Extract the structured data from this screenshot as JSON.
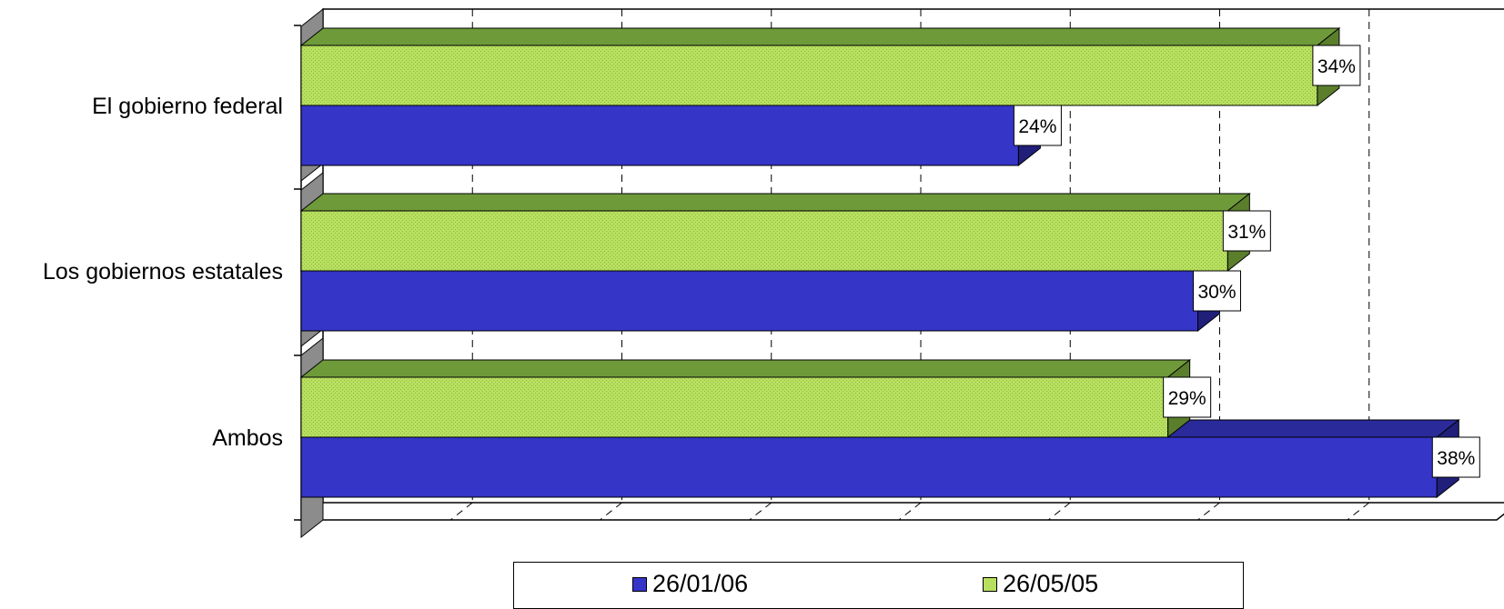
{
  "chart_data": {
    "type": "bar",
    "orientation": "horizontal",
    "three_d": true,
    "categories": [
      "El gobierno federal",
      "Los gobiernos estatales",
      "Ambos"
    ],
    "series": [
      {
        "name": "26/05/05",
        "values": [
          34,
          31,
          29
        ],
        "labels": [
          "34%",
          "31%",
          "29%"
        ],
        "color": "#b8e060"
      },
      {
        "name": "26/01/06",
        "values": [
          24,
          30,
          38
        ],
        "labels": [
          "24%",
          "30%",
          "38%"
        ],
        "color": "#3535c8"
      }
    ],
    "xlim": [
      0,
      40
    ],
    "grid": true,
    "legend_position": "bottom"
  },
  "legend": {
    "items": [
      {
        "name": "26/01/06",
        "color": "#3535c8"
      },
      {
        "name": "26/05/05",
        "color": "#b8e060"
      }
    ]
  }
}
